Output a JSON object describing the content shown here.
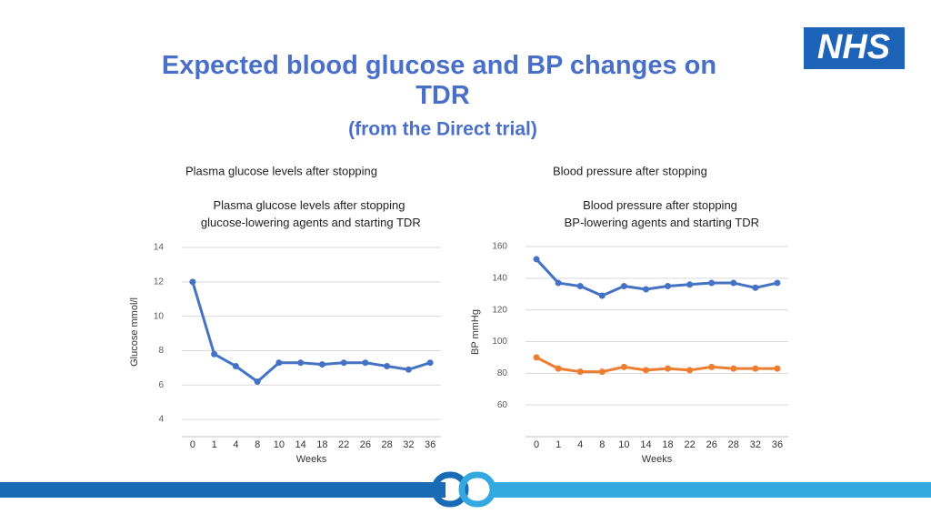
{
  "header": {
    "title": "Expected blood glucose and BP changes on TDR",
    "subtitle": "(from the Direct trial)",
    "logo": "NHS"
  },
  "chart_data": [
    {
      "type": "line",
      "heading": "Plasma glucose levels after stopping",
      "title": "Plasma glucose levels after stopping glucose-lowering agents and starting TDR",
      "y_label": "Glucose mmol/l",
      "x_label": "Weeks",
      "categories": [
        "0",
        "1",
        "4",
        "8",
        "10",
        "14",
        "18",
        "22",
        "26",
        "28",
        "32",
        "36"
      ],
      "values": [
        12,
        7.8,
        7.1,
        6.2,
        7.3,
        7.3,
        7.2,
        7.3,
        7.3,
        7.1,
        6.9,
        7.3
      ],
      "color": "#4472c4",
      "ylim": [
        3,
        14
      ],
      "yticks": [
        4,
        6,
        8,
        10,
        12,
        14
      ],
      "grid": true
    },
    {
      "type": "line",
      "heading": "Blood pressure after stopping",
      "title": "Blood pressure after stopping BP-lowering agents and starting TDR",
      "y_label": "BP mmHg",
      "x_label": "Weeks",
      "categories": [
        "0",
        "1",
        "4",
        "8",
        "10",
        "14",
        "18",
        "22",
        "26",
        "28",
        "32",
        "36"
      ],
      "series": [
        {
          "color": "#4472c4",
          "values": [
            152,
            137,
            135,
            129,
            135,
            133,
            135,
            136,
            137,
            137,
            134,
            137
          ]
        },
        {
          "color": "#ed7d31",
          "values": [
            90,
            83,
            81,
            81,
            84,
            82,
            83,
            82,
            84,
            83,
            83,
            83
          ]
        }
      ],
      "ylim": [
        40,
        160
      ],
      "yticks": [
        60,
        80,
        100,
        120,
        140,
        160
      ],
      "grid": true
    }
  ]
}
